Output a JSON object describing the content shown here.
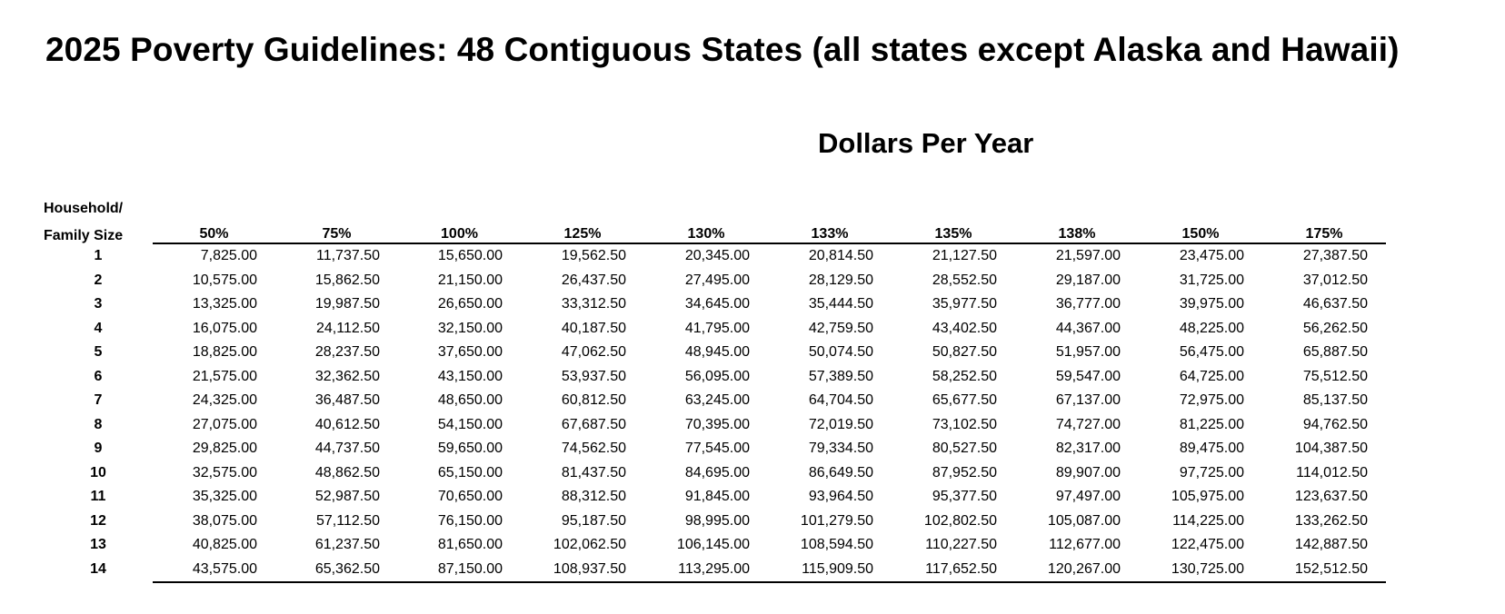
{
  "title": "2025 Poverty Guidelines: 48 Contiguous States (all states except Alaska and Hawaii)",
  "subtitle": "Dollars Per Year",
  "row_header": [
    "Household/",
    "Family Size"
  ],
  "columns": [
    "50%",
    "75%",
    "100%",
    "125%",
    "130%",
    "133%",
    "135%",
    "138%",
    "150%",
    "175%"
  ],
  "rows": [
    {
      "size": "1",
      "values": [
        "7,825.00",
        "11,737.50",
        "15,650.00",
        "19,562.50",
        "20,345.00",
        "20,814.50",
        "21,127.50",
        "21,597.00",
        "23,475.00",
        "27,387.50"
      ]
    },
    {
      "size": "2",
      "values": [
        "10,575.00",
        "15,862.50",
        "21,150.00",
        "26,437.50",
        "27,495.00",
        "28,129.50",
        "28,552.50",
        "29,187.00",
        "31,725.00",
        "37,012.50"
      ]
    },
    {
      "size": "3",
      "values": [
        "13,325.00",
        "19,987.50",
        "26,650.00",
        "33,312.50",
        "34,645.00",
        "35,444.50",
        "35,977.50",
        "36,777.00",
        "39,975.00",
        "46,637.50"
      ]
    },
    {
      "size": "4",
      "values": [
        "16,075.00",
        "24,112.50",
        "32,150.00",
        "40,187.50",
        "41,795.00",
        "42,759.50",
        "43,402.50",
        "44,367.00",
        "48,225.00",
        "56,262.50"
      ]
    },
    {
      "size": "5",
      "values": [
        "18,825.00",
        "28,237.50",
        "37,650.00",
        "47,062.50",
        "48,945.00",
        "50,074.50",
        "50,827.50",
        "51,957.00",
        "56,475.00",
        "65,887.50"
      ]
    },
    {
      "size": "6",
      "values": [
        "21,575.00",
        "32,362.50",
        "43,150.00",
        "53,937.50",
        "56,095.00",
        "57,389.50",
        "58,252.50",
        "59,547.00",
        "64,725.00",
        "75,512.50"
      ]
    },
    {
      "size": "7",
      "values": [
        "24,325.00",
        "36,487.50",
        "48,650.00",
        "60,812.50",
        "63,245.00",
        "64,704.50",
        "65,677.50",
        "67,137.00",
        "72,975.00",
        "85,137.50"
      ]
    },
    {
      "size": "8",
      "values": [
        "27,075.00",
        "40,612.50",
        "54,150.00",
        "67,687.50",
        "70,395.00",
        "72,019.50",
        "73,102.50",
        "74,727.00",
        "81,225.00",
        "94,762.50"
      ]
    },
    {
      "size": "9",
      "values": [
        "29,825.00",
        "44,737.50",
        "59,650.00",
        "74,562.50",
        "77,545.00",
        "79,334.50",
        "80,527.50",
        "82,317.00",
        "89,475.00",
        "104,387.50"
      ]
    },
    {
      "size": "10",
      "values": [
        "32,575.00",
        "48,862.50",
        "65,150.00",
        "81,437.50",
        "84,695.00",
        "86,649.50",
        "87,952.50",
        "89,907.00",
        "97,725.00",
        "114,012.50"
      ]
    },
    {
      "size": "11",
      "values": [
        "35,325.00",
        "52,987.50",
        "70,650.00",
        "88,312.50",
        "91,845.00",
        "93,964.50",
        "95,377.50",
        "97,497.00",
        "105,975.00",
        "123,637.50"
      ]
    },
    {
      "size": "12",
      "values": [
        "38,075.00",
        "57,112.50",
        "76,150.00",
        "95,187.50",
        "98,995.00",
        "101,279.50",
        "102,802.50",
        "105,087.00",
        "114,225.00",
        "133,262.50"
      ]
    },
    {
      "size": "13",
      "values": [
        "40,825.00",
        "61,237.50",
        "81,650.00",
        "102,062.50",
        "106,145.00",
        "108,594.50",
        "110,227.50",
        "112,677.00",
        "122,475.00",
        "142,887.50"
      ]
    },
    {
      "size": "14",
      "values": [
        "43,575.00",
        "65,362.50",
        "87,150.00",
        "108,937.50",
        "113,295.00",
        "115,909.50",
        "117,652.50",
        "120,267.00",
        "130,725.00",
        "152,512.50"
      ]
    }
  ]
}
